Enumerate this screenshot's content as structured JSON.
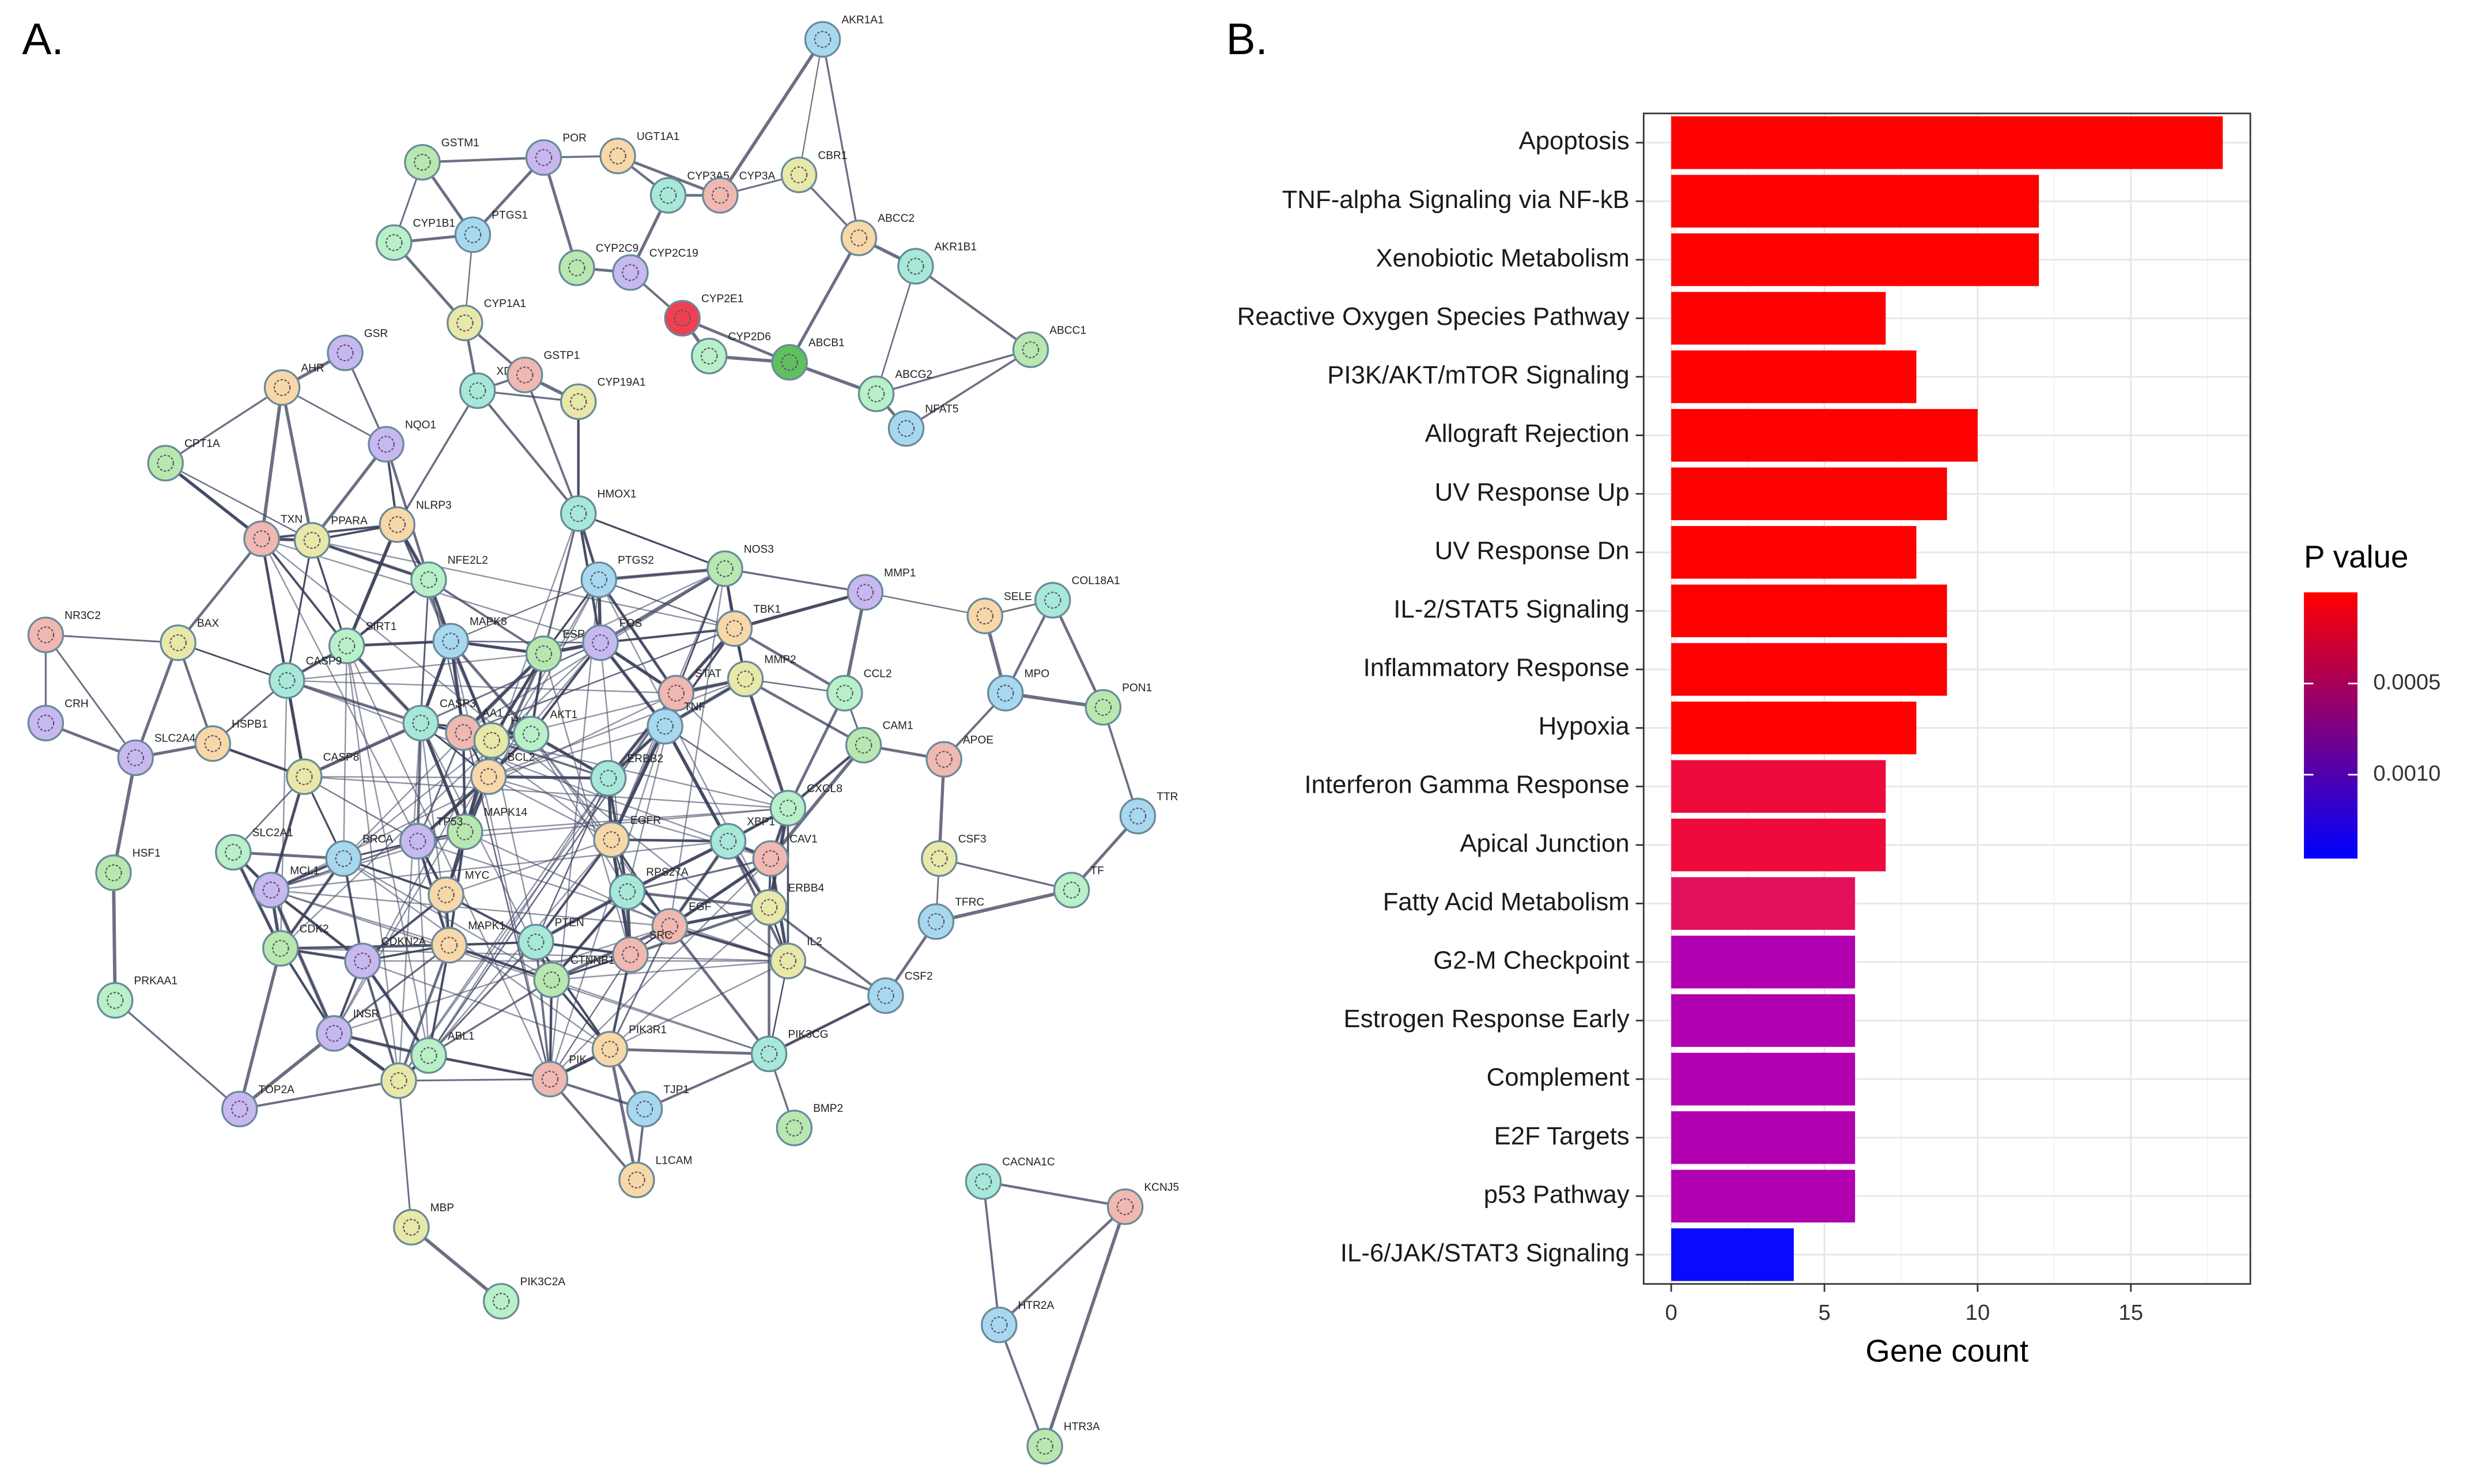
{
  "panels": {
    "a": "A.",
    "b": "B."
  },
  "network": {
    "nodes": [
      "AKR1A1",
      "GSTM1",
      "POR",
      "UGT1A1",
      "CYP3A5",
      "CYP3A",
      "CBR1",
      "CYP1B1",
      "PTGS1",
      "CYP2C9",
      "CYP2C19",
      "ABCC2",
      "AKR1B1",
      "CYP2E1",
      "CYP1A1",
      "CYP2D6",
      "ABCB1",
      "ABCC1",
      "GSR",
      "AHR",
      "XDH",
      "GSTP1",
      "CYP19A1",
      "ABCG2",
      "NFAT5",
      "CPT1A",
      "NQO1",
      "NLRP3",
      "HMOX1",
      "TXN",
      "PPARA",
      "NFE2L2",
      "PTGS2",
      "NOS3",
      "MMP1",
      "SELE",
      "COL18A1",
      "NR3C2",
      "BAX",
      "SIRT1",
      "MAPK8",
      "ESR1",
      "FOS",
      "TBK1",
      "CASP9",
      "STAT",
      "MMP2",
      "CCL2",
      "MPO",
      "PON1",
      "CRH",
      "HSPB1",
      "CASP3",
      "AA1",
      "HIF1A",
      "AKT1",
      "TNF",
      "CAM1",
      "SLC2A4",
      "BCL2",
      "ERBB2",
      "APOE",
      "CASP8",
      "CXCL8",
      "TTR",
      "MAPK14",
      "TP53",
      "EGFR",
      "XBP1",
      "CAV1",
      "CSF3",
      "SLC2A1",
      "BRCA",
      "HSF1",
      "MCL1",
      "MYC",
      "RPS27A",
      "EGF",
      "ERBB4",
      "TF",
      "TFRC",
      "CDK2",
      "CDKN2A",
      "MAPK1",
      "PTEN",
      "SRC",
      "IL2",
      "PRKAA1",
      "CSF2",
      "CTNNB1",
      "INSR",
      "PIK3R1",
      "PIK3CG",
      "PIK",
      "TERT",
      "ABL1",
      "TJP1",
      "BMP2",
      "TOP2A",
      "L1CAM",
      "CACNA1C",
      "KCNJ5",
      "MBP",
      "PIK3C2A",
      "HTR2A",
      "HTR3A"
    ]
  },
  "chart_data": {
    "type": "hbar",
    "categories": [
      "Apoptosis",
      "TNF-alpha Signaling via NF-kB",
      "Xenobiotic Metabolism",
      "Reactive Oxygen Species Pathway",
      "PI3K/AKT/mTOR  Signaling",
      "Allograft Rejection",
      "UV Response Up",
      "UV Response Dn",
      "IL-2/STAT5 Signaling",
      "Inflammatory Response",
      "Hypoxia",
      "Interferon Gamma Response",
      "Apical Junction",
      "Fatty Acid Metabolism",
      "G2-M Checkpoint",
      "Estrogen Response Early",
      "Complement",
      "E2F Targets",
      "p53 Pathway",
      "IL-6/JAK/STAT3 Signaling"
    ],
    "values": [
      18,
      12,
      12,
      7,
      8,
      10,
      9,
      8,
      9,
      9,
      8,
      7,
      7,
      6,
      6,
      6,
      6,
      6,
      6,
      4
    ],
    "colors": [
      "#fe0000",
      "#fe0000",
      "#fe0000",
      "#fe0000",
      "#fe0000",
      "#fe0000",
      "#fe0000",
      "#fe0000",
      "#fe0000",
      "#fe0000",
      "#fe0000",
      "#ee0a3a",
      "#ee0a3a",
      "#e2105c",
      "#b000b0",
      "#b000b0",
      "#b000b0",
      "#b000b0",
      "#b000b0",
      "#0a0aff"
    ],
    "xlabel": "Gene count",
    "xlim": [
      -0.9,
      18.9
    ],
    "xticks": [
      0,
      5,
      10,
      15
    ],
    "xminorticks": [
      2.5,
      7.5,
      12.5,
      17.5
    ],
    "grid": true,
    "colorbar": {
      "title": "P value",
      "lim": [
        0,
        0.00146
      ],
      "reverse": true,
      "ticks": [
        0.0005,
        {
          "value": 0.001,
          "label": "0.0010"
        }
      ],
      "colors": [
        "#ff0000",
        "#0000ff"
      ]
    }
  }
}
